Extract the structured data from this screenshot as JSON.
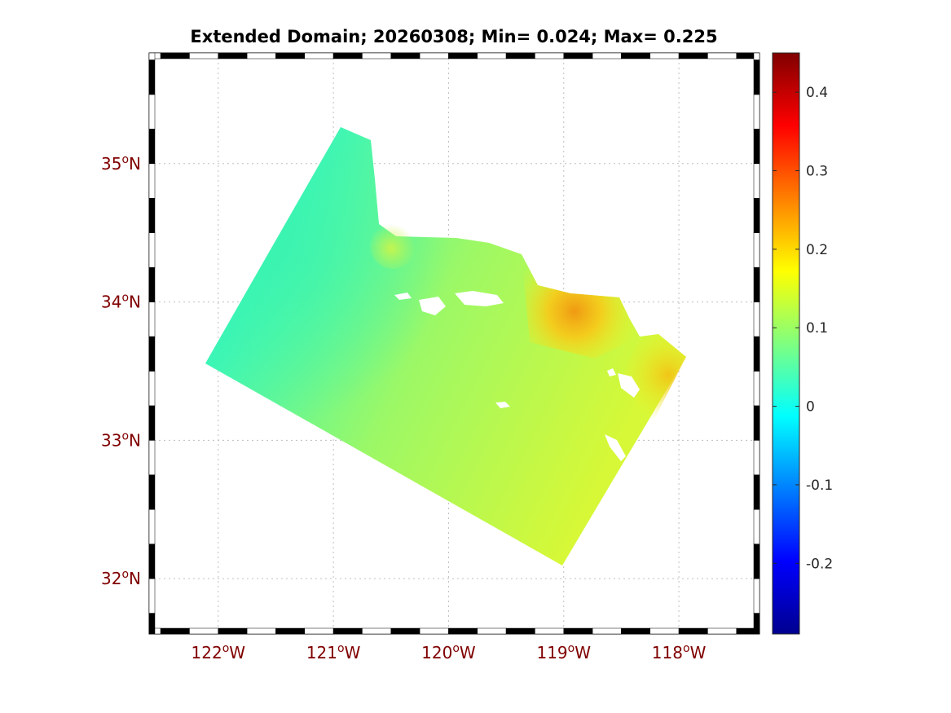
{
  "title": "Extended Domain; 20260308; Min= 0.024; Max= 0.225",
  "map": {
    "lon_range": [
      -122.6,
      -117.3
    ],
    "lat_range": [
      31.6,
      35.8
    ],
    "lon_ticks": [
      {
        "value": -122,
        "deg": "122",
        "hemi": "W"
      },
      {
        "value": -121,
        "deg": "121",
        "hemi": "W"
      },
      {
        "value": -120,
        "deg": "120",
        "hemi": "W"
      },
      {
        "value": -119,
        "deg": "119",
        "hemi": "W"
      },
      {
        "value": -118,
        "deg": "118",
        "hemi": "W"
      }
    ],
    "lat_ticks": [
      {
        "value": 35,
        "deg": "35",
        "hemi": "N"
      },
      {
        "value": 34,
        "deg": "34",
        "hemi": "N"
      },
      {
        "value": 33,
        "deg": "33",
        "hemi": "N"
      },
      {
        "value": 32,
        "deg": "32",
        "hemi": "N"
      }
    ],
    "degree_symbol": "o",
    "grid": "dotted",
    "label_color": "#800000"
  },
  "colorbar": {
    "colormap": "jet",
    "range": [
      -0.29,
      0.45
    ],
    "ticks": [
      {
        "value": 0.4,
        "label": "0.4"
      },
      {
        "value": 0.3,
        "label": "0.3"
      },
      {
        "value": 0.2,
        "label": "0.2"
      },
      {
        "value": 0.1,
        "label": "0.1"
      },
      {
        "value": 0,
        "label": "0"
      },
      {
        "value": -0.1,
        "label": "-0.1"
      },
      {
        "value": -0.2,
        "label": "-0.2"
      }
    ]
  },
  "field": {
    "domain_corners": [
      {
        "lon": -120.95,
        "lat": 35.25
      },
      {
        "lon": -117.9,
        "lat": 33.6
      },
      {
        "lon": -119.0,
        "lat": 32.1
      },
      {
        "lon": -122.1,
        "lat": 33.55
      }
    ],
    "value_min": 0.024,
    "value_max": 0.225,
    "anomalies": [
      {
        "lon": -118.9,
        "lat": 33.9,
        "value": 0.22
      },
      {
        "lon": -118.0,
        "lat": 33.4,
        "value": 0.19
      },
      {
        "lon": -120.4,
        "lat": 34.4,
        "value": 0.17
      },
      {
        "lon": -121.8,
        "lat": 33.6,
        "value": 0.05
      }
    ]
  }
}
